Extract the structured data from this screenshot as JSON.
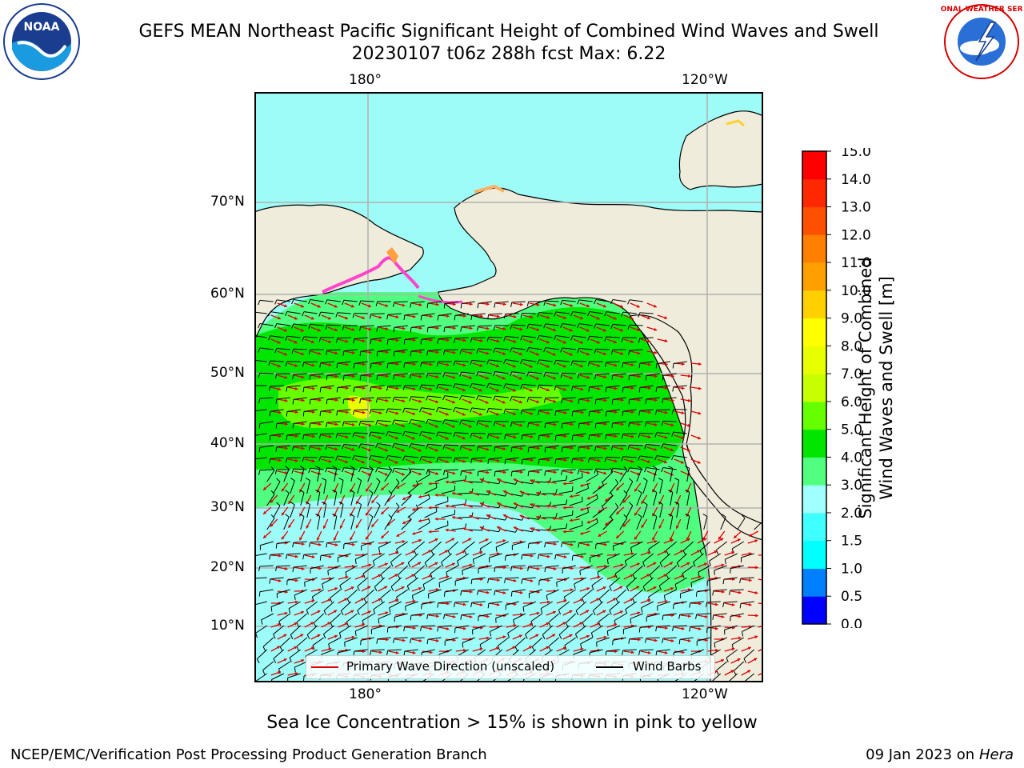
{
  "header": {
    "title_line1": "GEFS MEAN Northeast Pacific Significant Height of Combined Wind Waves and Swell",
    "title_line2": "20230107 t06z 288h fcst   Max: 6.22"
  },
  "logos": {
    "left": "NOAA",
    "right": "NATIONAL WEATHER SERVICE"
  },
  "map": {
    "lon_labels": [
      "180°",
      "120°W"
    ],
    "lat_labels": [
      "70°N",
      "60°N",
      "50°N",
      "40°N",
      "30°N",
      "20°N",
      "10°N"
    ],
    "legend": {
      "wave": "Primary Wave Direction (unscaled)",
      "wind": "Wind Barbs"
    },
    "colors": {
      "land": "#efecdb",
      "ocean": "#9efcf8",
      "grid": "#b0b0b0",
      "arrow": "#e00000"
    }
  },
  "colorbar": {
    "label_line1": "Significant Height of Combined",
    "label_line2": "Wind Waves and Swell [m]",
    "ticks": [
      "0.0",
      "0.5",
      "1.0",
      "1.5",
      "2.0",
      "3.0",
      "4.0",
      "5.0",
      "6.0",
      "7.0",
      "8.0",
      "9.0",
      "10.0",
      "11.0",
      "12.0",
      "13.0",
      "14.0",
      "15.0"
    ],
    "colors": [
      "#0000ff",
      "#0080ff",
      "#00ffff",
      "#40ffff",
      "#a0ffff",
      "#50ff80",
      "#00e600",
      "#66ff00",
      "#c8ff00",
      "#e8ff00",
      "#ffff00",
      "#ffd000",
      "#ffa000",
      "#ff8000",
      "#ff5000",
      "#ff2800",
      "#ff0000"
    ]
  },
  "notes": {
    "sea_ice": "Sea Ice Concentration > 15% is shown in pink to yellow"
  },
  "footer": {
    "left": "NCEP/EMC/Verification Post Processing Product Generation Branch",
    "right_prefix": "09 Jan 2023 on ",
    "right_italic": "Hera"
  }
}
